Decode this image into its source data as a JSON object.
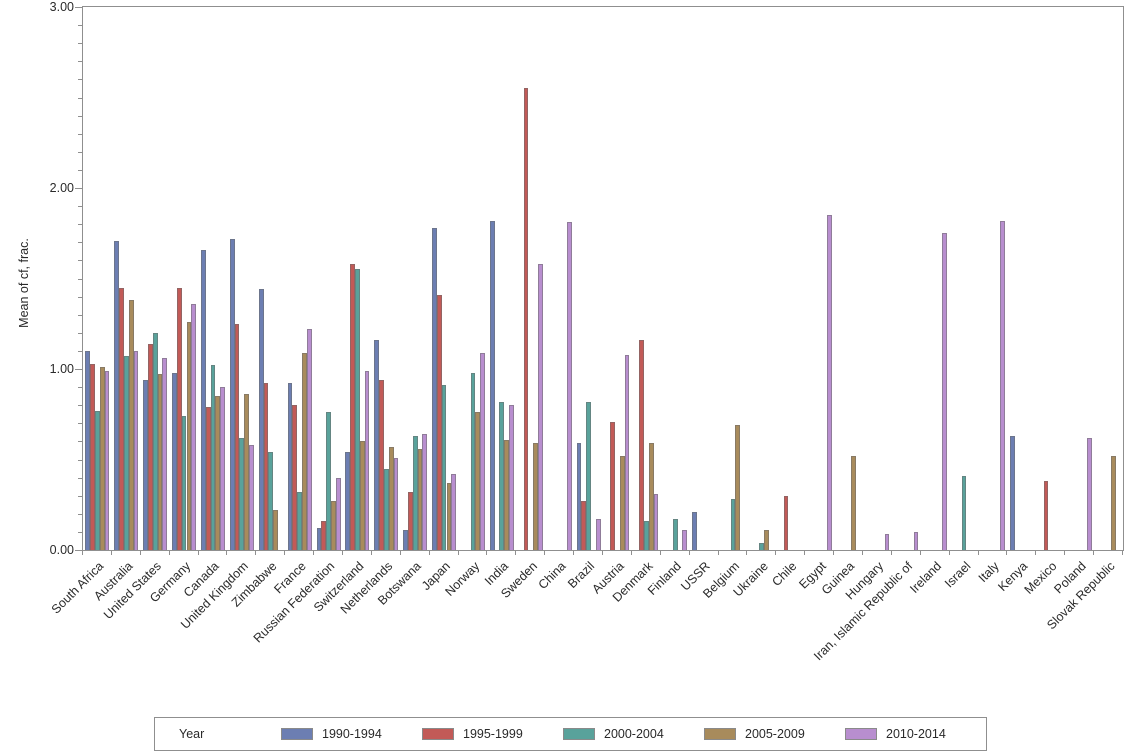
{
  "y_axis": {
    "title": "Mean of cf, frac.",
    "tick_labels": [
      "0.00",
      "1.00",
      "2.00",
      "3.00"
    ]
  },
  "legend": {
    "title": "Year"
  },
  "colors": {
    "axis": "#8f8f8f",
    "text": "#2a2a2a",
    "series_blue": "#6C7EB2",
    "series_red": "#C25A57",
    "series_teal": "#59A29B",
    "series_tan": "#A88B5C",
    "series_purple": "#B88ECF"
  },
  "chart_data": {
    "type": "bar",
    "title": "",
    "xlabel": "",
    "ylabel": "Mean of cf, frac.",
    "ylim": [
      0,
      3
    ],
    "y_major_ticks": [
      0,
      1,
      2,
      3
    ],
    "y_minor_tick_step": 0.1,
    "grid": false,
    "legend_title": "Year",
    "legend_position": "bottom",
    "categories": [
      "South Africa",
      "Australia",
      "United States",
      "Germany",
      "Canada",
      "United Kingdom",
      "Zimbabwe",
      "France",
      "Russian Federation",
      "Switzerland",
      "Netherlands",
      "Botswana",
      "Japan",
      "Norway",
      "India",
      "Sweden",
      "China",
      "Brazil",
      "Austria",
      "Denmark",
      "Finland",
      "USSR",
      "Belgium",
      "Ukraine",
      "Chile",
      "Egypt",
      "Guinea",
      "Hungary",
      "Iran, Islamic Republic of",
      "Ireland",
      "Israel",
      "Italy",
      "Kenya",
      "Mexico",
      "Poland",
      "Slovak Republic"
    ],
    "series": [
      {
        "name": "1990-1994",
        "color": "#6C7EB2",
        "values": [
          1.1,
          1.71,
          0.94,
          0.98,
          1.66,
          1.72,
          1.44,
          0.92,
          0.12,
          0.54,
          1.16,
          0.11,
          1.78,
          0,
          1.82,
          0,
          0,
          0.59,
          0,
          0,
          0,
          0.21,
          0,
          0,
          0,
          0,
          0,
          0,
          0,
          0,
          0,
          0,
          0.63,
          0,
          0,
          0
        ]
      },
      {
        "name": "1995-1999",
        "color": "#C25A57",
        "values": [
          1.03,
          1.45,
          1.14,
          1.45,
          0.79,
          1.25,
          0.92,
          0.8,
          0.16,
          1.58,
          0.94,
          0.32,
          1.41,
          0,
          0,
          2.55,
          0,
          0.27,
          0.71,
          1.16,
          0,
          0,
          0,
          0,
          0.3,
          0,
          0,
          0,
          0,
          0,
          0,
          0,
          0,
          0.38,
          0,
          0
        ]
      },
      {
        "name": "2000-2004",
        "color": "#59A29B",
        "values": [
          0.77,
          1.07,
          1.2,
          0.74,
          1.02,
          0.62,
          0.54,
          0.32,
          0.76,
          1.55,
          0.45,
          0.63,
          0.91,
          0.98,
          0.82,
          0,
          0,
          0.82,
          0,
          0.16,
          0.17,
          0,
          0.28,
          0.04,
          0,
          0,
          0,
          0,
          0,
          0,
          0.41,
          0,
          0,
          0,
          0,
          0
        ]
      },
      {
        "name": "2005-2009",
        "color": "#A88B5C",
        "values": [
          1.01,
          1.38,
          0.97,
          1.26,
          0.85,
          0.86,
          0.22,
          1.09,
          0.27,
          0.6,
          0.57,
          0.56,
          0.37,
          0.76,
          0.61,
          0.59,
          0,
          0,
          0.52,
          0.59,
          0,
          0,
          0.69,
          0.11,
          0,
          0,
          0.52,
          0,
          0,
          0,
          0,
          0,
          0,
          0,
          0,
          0.52
        ]
      },
      {
        "name": "2010-2014",
        "color": "#B88ECF",
        "values": [
          0.99,
          1.1,
          1.06,
          1.36,
          0.9,
          0.58,
          0,
          1.22,
          0.4,
          0.99,
          0.51,
          0.64,
          0.42,
          1.09,
          0.8,
          1.58,
          1.81,
          0.17,
          1.08,
          0.31,
          0.11,
          0,
          0,
          0,
          0,
          1.85,
          0,
          0.09,
          0.1,
          1.75,
          0,
          1.82,
          0,
          0,
          0.62,
          0
        ]
      }
    ]
  }
}
